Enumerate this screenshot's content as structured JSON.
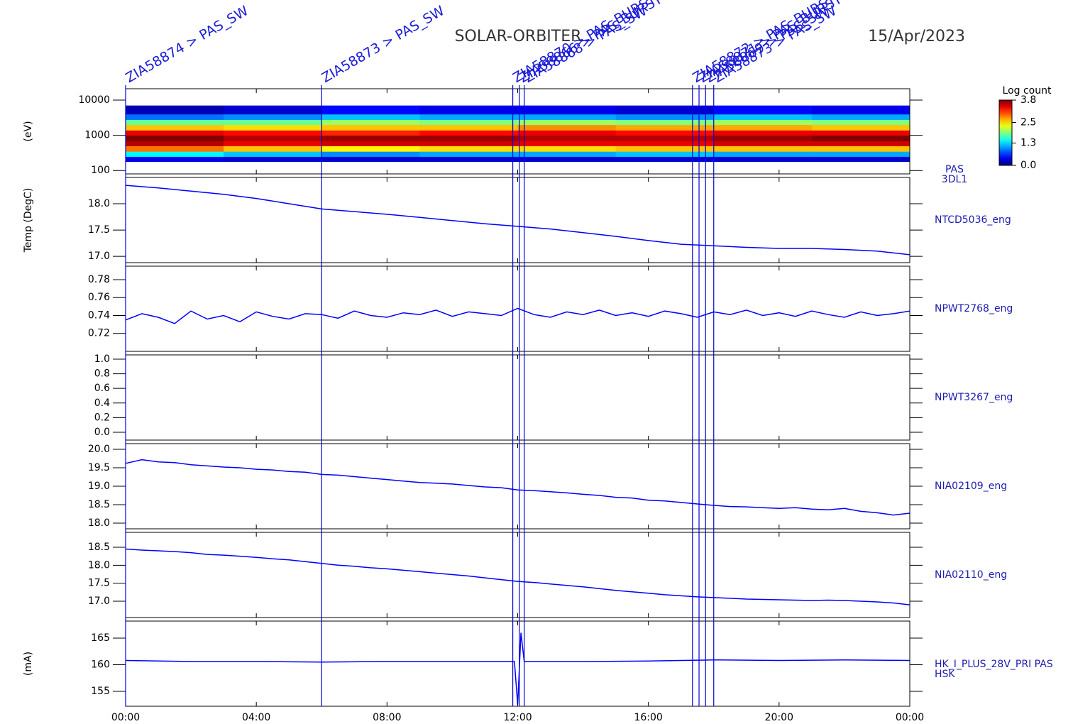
{
  "header": {
    "title": "SOLAR-ORBITER",
    "date": "15/Apr/2023"
  },
  "x_axis": {
    "xlim": [
      0,
      24
    ],
    "xticks": [
      {
        "value": 0,
        "label": "00:00"
      },
      {
        "value": 4,
        "label": "04:00"
      },
      {
        "value": 8,
        "label": "08:00"
      },
      {
        "value": 12,
        "label": "12:00"
      },
      {
        "value": 16,
        "label": "16:00"
      },
      {
        "value": 20,
        "label": "20:00"
      },
      {
        "value": 24,
        "label": "00:00"
      }
    ]
  },
  "events": [
    {
      "x": 0,
      "label": "ZIA58874 > PAS_SW"
    },
    {
      "x": 6,
      "label": "ZIA58873 > PAS_SW"
    },
    {
      "x": 11.85,
      "label": "ZIA58870 > PAS_BURST"
    },
    {
      "x": 12.05,
      "label": "ZIA58866 > PAS_BURST"
    },
    {
      "x": 12.2,
      "label": "ZIA58868 > PAS_SW"
    },
    {
      "x": 17.35,
      "label": "ZIA58872 > PAS_BURST"
    },
    {
      "x": 17.55,
      "label": "ZIA58871 > PAS_BURST"
    },
    {
      "x": 17.75,
      "label": "ZIA58869 > PAS_SW"
    },
    {
      "x": 18.0,
      "label": "ZIA58873 > PAS_SW"
    }
  ],
  "chart_data": [
    {
      "type": "heatmap",
      "label_lines": [
        "PAS",
        "3DL1"
      ],
      "ylabel": "(eV)",
      "log_y": true,
      "ylim": [
        80,
        21000
      ],
      "yticks": [
        100,
        1000,
        10000
      ],
      "x_bins": [
        0,
        3,
        6,
        9,
        12,
        15,
        18,
        21,
        24
      ],
      "y_bins": [
        180,
        250,
        350,
        500,
        700,
        1000,
        1400,
        2000,
        2800,
        4000,
        7000
      ],
      "values": [
        [
          0.4,
          1.4,
          2.9,
          3.6,
          3.8,
          3.4,
          2.6,
          1.8,
          0.9,
          0.2
        ],
        [
          0.3,
          1.2,
          2.6,
          3.4,
          3.6,
          3.3,
          2.5,
          1.8,
          1.0,
          0.3
        ],
        [
          0.3,
          1.0,
          2.4,
          3.5,
          3.7,
          3.2,
          2.6,
          2.0,
          1.2,
          0.5
        ],
        [
          0.3,
          1.1,
          2.5,
          3.5,
          3.7,
          3.3,
          2.6,
          1.9,
          1.1,
          0.4
        ],
        [
          0.3,
          1.1,
          2.5,
          3.4,
          3.6,
          3.4,
          2.8,
          2.0,
          1.1,
          0.4
        ],
        [
          0.3,
          1.2,
          2.6,
          3.4,
          3.6,
          3.3,
          2.7,
          1.9,
          1.0,
          0.3
        ],
        [
          0.3,
          1.1,
          2.6,
          3.5,
          3.7,
          3.4,
          2.7,
          2.0,
          1.2,
          0.5
        ],
        [
          0.3,
          1.1,
          2.6,
          3.5,
          3.8,
          3.4,
          2.6,
          1.9,
          1.1,
          0.4
        ]
      ],
      "zlabel": "Log count",
      "zlim": [
        0,
        3.8
      ],
      "zticks": [
        {
          "value": 3.8,
          "label": "3.8"
        },
        {
          "value": 2.5,
          "label": "2.5"
        },
        {
          "value": 1.3,
          "label": "1.3"
        },
        {
          "value": 0,
          "label": "0.0"
        }
      ]
    },
    {
      "type": "line",
      "label_lines": [
        "NTCD5036_eng"
      ],
      "ylabel": "Temp (DegC)",
      "color": "#0000ff",
      "ylim": [
        16.88,
        18.5
      ],
      "yticks": [
        {
          "value": 18,
          "label": "18.0"
        },
        17.5,
        {
          "value": 17,
          "label": "17.0"
        }
      ],
      "x": [
        0,
        1,
        2,
        3,
        4,
        5,
        6,
        7,
        8,
        9,
        10,
        11,
        12,
        13,
        14,
        15,
        16,
        17,
        18,
        19,
        20,
        21,
        22,
        23,
        24
      ],
      "values": [
        18.35,
        18.3,
        18.24,
        18.18,
        18.1,
        18.0,
        17.9,
        17.85,
        17.8,
        17.74,
        17.68,
        17.62,
        17.57,
        17.52,
        17.45,
        17.38,
        17.3,
        17.23,
        17.2,
        17.17,
        17.15,
        17.15,
        17.13,
        17.1,
        17.03
      ]
    },
    {
      "type": "line",
      "label_lines": [
        "NPWT2768_eng"
      ],
      "color": "#0000ff",
      "ylim": [
        0.7,
        0.795
      ],
      "yticks": [
        0.78,
        0.76,
        0.74,
        0.72
      ],
      "x": [
        0,
        0.5,
        1,
        1.5,
        2,
        2.5,
        3,
        3.5,
        4,
        4.5,
        5,
        5.5,
        6,
        6.5,
        7,
        7.5,
        8,
        8.5,
        9,
        9.5,
        10,
        10.5,
        11,
        11.5,
        12,
        12.5,
        13,
        13.5,
        14,
        14.5,
        15,
        15.5,
        16,
        16.5,
        17,
        17.5,
        18,
        18.5,
        19,
        19.5,
        20,
        20.5,
        21,
        21.5,
        22,
        22.5,
        23,
        23.5,
        24
      ],
      "values": [
        0.735,
        0.742,
        0.738,
        0.731,
        0.745,
        0.736,
        0.74,
        0.733,
        0.744,
        0.739,
        0.736,
        0.742,
        0.741,
        0.737,
        0.745,
        0.74,
        0.738,
        0.743,
        0.741,
        0.746,
        0.739,
        0.744,
        0.742,
        0.74,
        0.748,
        0.741,
        0.738,
        0.744,
        0.741,
        0.746,
        0.74,
        0.743,
        0.739,
        0.745,
        0.742,
        0.738,
        0.744,
        0.741,
        0.746,
        0.74,
        0.743,
        0.739,
        0.745,
        0.741,
        0.738,
        0.744,
        0.74,
        0.742,
        0.745
      ]
    },
    {
      "type": "line",
      "label_lines": [
        "NPWT3267_eng"
      ],
      "color": "#0000ff",
      "ylim": [
        -0.107,
        1.058
      ],
      "yticks": [
        {
          "value": 1,
          "label": "1.0"
        },
        0.8,
        0.6,
        0.4,
        0.2,
        {
          "value": 0,
          "label": "0.0"
        }
      ]
    },
    {
      "type": "line",
      "label_lines": [
        "NIA02109_eng"
      ],
      "color": "#0000ff",
      "ylim": [
        17.846,
        20.154
      ],
      "yticks": [
        {
          "value": 20,
          "label": "20.0"
        },
        19.5,
        {
          "value": 19,
          "label": "19.0"
        },
        18.5,
        {
          "value": 18,
          "label": "18.0"
        }
      ],
      "x": [
        0,
        0.5,
        1,
        1.5,
        2,
        2.5,
        3,
        3.5,
        4,
        4.5,
        5,
        5.5,
        6,
        6.5,
        7,
        7.5,
        8,
        8.5,
        9,
        9.5,
        10,
        10.5,
        11,
        11.5,
        12,
        12.5,
        13,
        13.5,
        14,
        14.5,
        15,
        15.5,
        16,
        16.5,
        17,
        17.5,
        18,
        18.5,
        19,
        19.5,
        20,
        20.5,
        21,
        21.5,
        22,
        22.5,
        23,
        23.5,
        24
      ],
      "values": [
        19.62,
        19.72,
        19.66,
        19.64,
        19.58,
        19.55,
        19.52,
        19.5,
        19.46,
        19.44,
        19.4,
        19.38,
        19.32,
        19.3,
        19.26,
        19.22,
        19.18,
        19.14,
        19.1,
        19.08,
        19.06,
        19.02,
        18.98,
        18.96,
        18.9,
        18.88,
        18.85,
        18.82,
        18.78,
        18.75,
        18.7,
        18.68,
        18.62,
        18.6,
        18.56,
        18.52,
        18.48,
        18.45,
        18.44,
        18.42,
        18.4,
        18.42,
        18.38,
        18.36,
        18.4,
        18.32,
        18.28,
        18.22,
        18.27
      ]
    },
    {
      "type": "line",
      "label_lines": [
        "NIA02110_eng"
      ],
      "color": "#0000ff",
      "ylim": [
        16.546,
        18.914
      ],
      "yticks": [
        18.5,
        {
          "value": 18,
          "label": "18.0"
        },
        17.5,
        {
          "value": 17,
          "label": "17.0"
        }
      ],
      "x": [
        0,
        0.5,
        1,
        1.5,
        2,
        2.5,
        3,
        3.5,
        4,
        4.5,
        5,
        5.5,
        6,
        6.5,
        7,
        7.5,
        8,
        8.5,
        9,
        9.5,
        10,
        10.5,
        11,
        11.5,
        12,
        12.5,
        13,
        13.5,
        14,
        14.5,
        15,
        15.5,
        16,
        16.5,
        17,
        17.5,
        18,
        18.5,
        19,
        19.5,
        20,
        20.5,
        21,
        21.5,
        22,
        22.5,
        23,
        23.5,
        24
      ],
      "values": [
        18.45,
        18.42,
        18.4,
        18.38,
        18.35,
        18.3,
        18.28,
        18.25,
        18.22,
        18.18,
        18.15,
        18.1,
        18.05,
        18.0,
        17.97,
        17.93,
        17.9,
        17.86,
        17.82,
        17.78,
        17.74,
        17.7,
        17.65,
        17.6,
        17.55,
        17.52,
        17.48,
        17.44,
        17.4,
        17.35,
        17.3,
        17.26,
        17.22,
        17.18,
        17.15,
        17.12,
        17.1,
        17.08,
        17.06,
        17.05,
        17.04,
        17.03,
        17.02,
        17.03,
        17.02,
        17.0,
        16.98,
        16.95,
        16.9
      ]
    },
    {
      "type": "line",
      "label_lines": [
        "HK_I_PLUS_28V_PRI PAS",
        "HSK"
      ],
      "ylabel": "(mA)",
      "color": "#0000ff",
      "ylim": [
        152.2,
        168.2
      ],
      "yticks": [
        165,
        160,
        155
      ],
      "x": [
        0,
        2,
        4,
        6,
        8,
        10,
        11.9,
        12.0,
        12.1,
        12.2,
        14,
        16,
        18,
        20,
        22,
        24
      ],
      "values": [
        160.8,
        160.6,
        160.6,
        160.5,
        160.6,
        160.6,
        160.6,
        152.5,
        166,
        160.6,
        160.6,
        160.7,
        160.9,
        160.8,
        160.9,
        160.8
      ]
    }
  ]
}
